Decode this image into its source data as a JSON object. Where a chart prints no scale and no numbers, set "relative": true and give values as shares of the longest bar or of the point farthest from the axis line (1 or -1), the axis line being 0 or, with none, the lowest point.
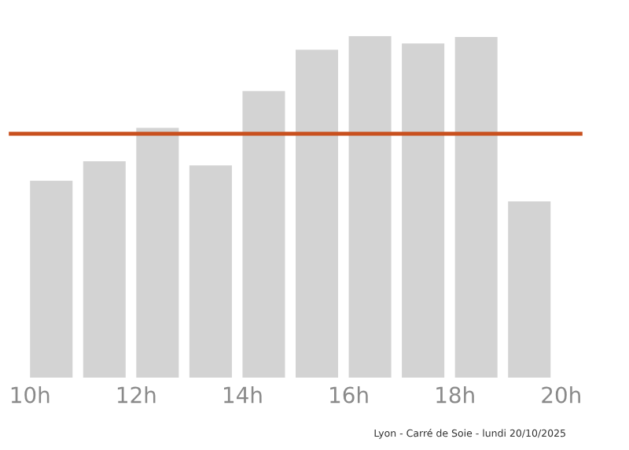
{
  "chart_data": {
    "type": "bar",
    "relative": true,
    "x": [
      10.4,
      11.4,
      12.4,
      13.4,
      14.4,
      15.4,
      16.4,
      17.4,
      18.4,
      19.4
    ],
    "values": [
      0.576,
      0.633,
      0.731,
      0.621,
      0.839,
      0.96,
      1,
      0.978,
      0.997,
      0.516
    ],
    "color": "#d3d3d3",
    "xlim": [
      9.6,
      20.4
    ],
    "xticks": [
      {
        "value": 10,
        "label": "10h"
      },
      {
        "value": 12,
        "label": "12h"
      },
      {
        "value": 14,
        "label": "14h"
      },
      {
        "value": 16,
        "label": "16h"
      },
      {
        "value": 18,
        "label": "18h"
      },
      {
        "value": 20,
        "label": "20h"
      }
    ],
    "ref_lines": [
      {
        "axis": "y",
        "value": 0.714,
        "color": "#c8501e"
      }
    ],
    "annotations": [
      "Lyon - Carré de Soie - lundi 20/10/2025"
    ],
    "grid": false,
    "legend": false
  }
}
